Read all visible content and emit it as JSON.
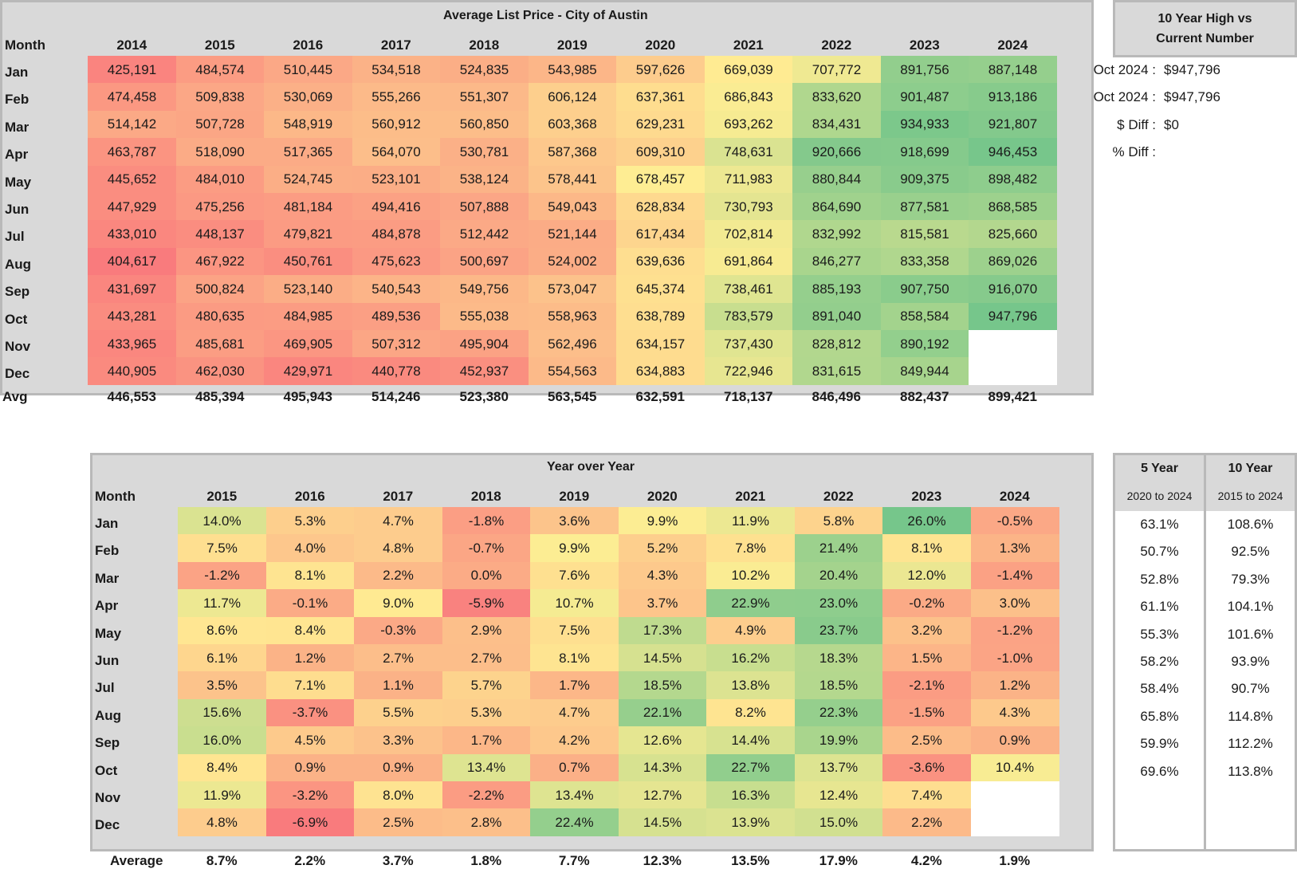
{
  "price_table": {
    "title": "Average List Price - City of Austin",
    "month_header": "Month",
    "years": [
      "2014",
      "2015",
      "2016",
      "2017",
      "2018",
      "2019",
      "2020",
      "2021",
      "2022",
      "2023",
      "2024"
    ],
    "rows": [
      {
        "month": "Jan",
        "values": [
          "425,191",
          "484,574",
          "510,445",
          "534,518",
          "524,835",
          "543,985",
          "597,626",
          "669,039",
          "707,772",
          "891,756",
          "887,148"
        ]
      },
      {
        "month": "Feb",
        "values": [
          "474,458",
          "509,838",
          "530,069",
          "555,266",
          "551,307",
          "606,124",
          "637,361",
          "686,843",
          "833,620",
          "901,487",
          "913,186"
        ]
      },
      {
        "month": "Mar",
        "values": [
          "514,142",
          "507,728",
          "548,919",
          "560,912",
          "560,850",
          "603,368",
          "629,231",
          "693,262",
          "834,431",
          "934,933",
          "921,807"
        ]
      },
      {
        "month": "Apr",
        "values": [
          "463,787",
          "518,090",
          "517,365",
          "564,070",
          "530,781",
          "587,368",
          "609,310",
          "748,631",
          "920,666",
          "918,699",
          "946,453"
        ]
      },
      {
        "month": "May",
        "values": [
          "445,652",
          "484,010",
          "524,745",
          "523,101",
          "538,124",
          "578,441",
          "678,457",
          "711,983",
          "880,844",
          "909,375",
          "898,482"
        ]
      },
      {
        "month": "Jun",
        "values": [
          "447,929",
          "475,256",
          "481,184",
          "494,416",
          "507,888",
          "549,043",
          "628,834",
          "730,793",
          "864,690",
          "877,581",
          "868,585"
        ]
      },
      {
        "month": "Jul",
        "values": [
          "433,010",
          "448,137",
          "479,821",
          "484,878",
          "512,442",
          "521,144",
          "617,434",
          "702,814",
          "832,992",
          "815,581",
          "825,660"
        ]
      },
      {
        "month": "Aug",
        "values": [
          "404,617",
          "467,922",
          "450,761",
          "475,623",
          "500,697",
          "524,002",
          "639,636",
          "691,864",
          "846,277",
          "833,358",
          "869,026"
        ]
      },
      {
        "month": "Sep",
        "values": [
          "431,697",
          "500,824",
          "523,140",
          "540,543",
          "549,756",
          "573,047",
          "645,374",
          "738,461",
          "885,193",
          "907,750",
          "916,070"
        ]
      },
      {
        "month": "Oct",
        "values": [
          "443,281",
          "480,635",
          "484,985",
          "489,536",
          "555,038",
          "558,963",
          "638,789",
          "783,579",
          "891,040",
          "858,584",
          "947,796"
        ]
      },
      {
        "month": "Nov",
        "values": [
          "433,965",
          "485,681",
          "469,905",
          "507,312",
          "495,904",
          "562,496",
          "634,157",
          "737,430",
          "828,812",
          "890,192",
          ""
        ]
      },
      {
        "month": "Dec",
        "values": [
          "440,905",
          "462,030",
          "429,971",
          "440,778",
          "452,937",
          "554,563",
          "634,883",
          "722,946",
          "831,615",
          "849,944",
          ""
        ]
      }
    ],
    "avg_label": "Avg",
    "averages": [
      "446,553",
      "485,394",
      "495,943",
      "514,246",
      "523,380",
      "563,545",
      "632,591",
      "718,137",
      "846,496",
      "882,437",
      "899,421"
    ]
  },
  "high_box": {
    "title_line1": "10 Year High vs",
    "title_line2": "Current Number",
    "items": [
      {
        "label": "Oct 2024 :",
        "value": "$947,796"
      },
      {
        "label": "Oct 2024 :",
        "value": "$947,796"
      },
      {
        "label": "$ Diff :",
        "value": "$0"
      },
      {
        "label": "% Diff :",
        "value": ""
      }
    ]
  },
  "yoy_table": {
    "title": "Year over Year",
    "month_header": "Month",
    "years": [
      "2015",
      "2016",
      "2017",
      "2018",
      "2019",
      "2020",
      "2021",
      "2022",
      "2023",
      "2024"
    ],
    "rows": [
      {
        "month": "Jan",
        "values": [
          "14.0%",
          "5.3%",
          "4.7%",
          "-1.8%",
          "3.6%",
          "9.9%",
          "11.9%",
          "5.8%",
          "26.0%",
          "-0.5%"
        ]
      },
      {
        "month": "Feb",
        "values": [
          "7.5%",
          "4.0%",
          "4.8%",
          "-0.7%",
          "9.9%",
          "5.2%",
          "7.8%",
          "21.4%",
          "8.1%",
          "1.3%"
        ]
      },
      {
        "month": "Mar",
        "values": [
          "-1.2%",
          "8.1%",
          "2.2%",
          "0.0%",
          "7.6%",
          "4.3%",
          "10.2%",
          "20.4%",
          "12.0%",
          "-1.4%"
        ]
      },
      {
        "month": "Apr",
        "values": [
          "11.7%",
          "-0.1%",
          "9.0%",
          "-5.9%",
          "10.7%",
          "3.7%",
          "22.9%",
          "23.0%",
          "-0.2%",
          "3.0%"
        ]
      },
      {
        "month": "May",
        "values": [
          "8.6%",
          "8.4%",
          "-0.3%",
          "2.9%",
          "7.5%",
          "17.3%",
          "4.9%",
          "23.7%",
          "3.2%",
          "-1.2%"
        ]
      },
      {
        "month": "Jun",
        "values": [
          "6.1%",
          "1.2%",
          "2.7%",
          "2.7%",
          "8.1%",
          "14.5%",
          "16.2%",
          "18.3%",
          "1.5%",
          "-1.0%"
        ]
      },
      {
        "month": "Jul",
        "values": [
          "3.5%",
          "7.1%",
          "1.1%",
          "5.7%",
          "1.7%",
          "18.5%",
          "13.8%",
          "18.5%",
          "-2.1%",
          "1.2%"
        ]
      },
      {
        "month": "Aug",
        "values": [
          "15.6%",
          "-3.7%",
          "5.5%",
          "5.3%",
          "4.7%",
          "22.1%",
          "8.2%",
          "22.3%",
          "-1.5%",
          "4.3%"
        ]
      },
      {
        "month": "Sep",
        "values": [
          "16.0%",
          "4.5%",
          "3.3%",
          "1.7%",
          "4.2%",
          "12.6%",
          "14.4%",
          "19.9%",
          "2.5%",
          "0.9%"
        ]
      },
      {
        "month": "Oct",
        "values": [
          "8.4%",
          "0.9%",
          "0.9%",
          "13.4%",
          "0.7%",
          "14.3%",
          "22.7%",
          "13.7%",
          "-3.6%",
          "10.4%"
        ]
      },
      {
        "month": "Nov",
        "values": [
          "11.9%",
          "-3.2%",
          "8.0%",
          "-2.2%",
          "13.4%",
          "12.7%",
          "16.3%",
          "12.4%",
          "7.4%",
          ""
        ]
      },
      {
        "month": "Dec",
        "values": [
          "4.8%",
          "-6.9%",
          "2.5%",
          "2.8%",
          "22.4%",
          "14.5%",
          "13.9%",
          "15.0%",
          "2.2%",
          ""
        ]
      }
    ],
    "avg_label": "Average",
    "averages": [
      "8.7%",
      "2.2%",
      "3.7%",
      "1.8%",
      "7.7%",
      "12.3%",
      "13.5%",
      "17.9%",
      "4.2%",
      "1.9%"
    ]
  },
  "growth_table": {
    "five_year": {
      "title": "5 Year",
      "subtitle": "2020 to 2024",
      "values": [
        "63.1%",
        "50.7%",
        "52.8%",
        "61.1%",
        "55.3%",
        "58.2%",
        "58.4%",
        "65.8%",
        "59.9%",
        "69.6%"
      ]
    },
    "ten_year": {
      "title": "10 Year",
      "subtitle": "2015 to 2024",
      "values": [
        "108.6%",
        "92.5%",
        "79.3%",
        "104.1%",
        "101.6%",
        "93.9%",
        "90.7%",
        "114.8%",
        "112.2%",
        "113.8%"
      ]
    }
  },
  "colors": {
    "header_bg": "#d9d9d9",
    "border": "#b9b9b9",
    "scale_low": "#f8696b",
    "scale_mid": "#ffeb84",
    "scale_high": "#63be7b"
  }
}
